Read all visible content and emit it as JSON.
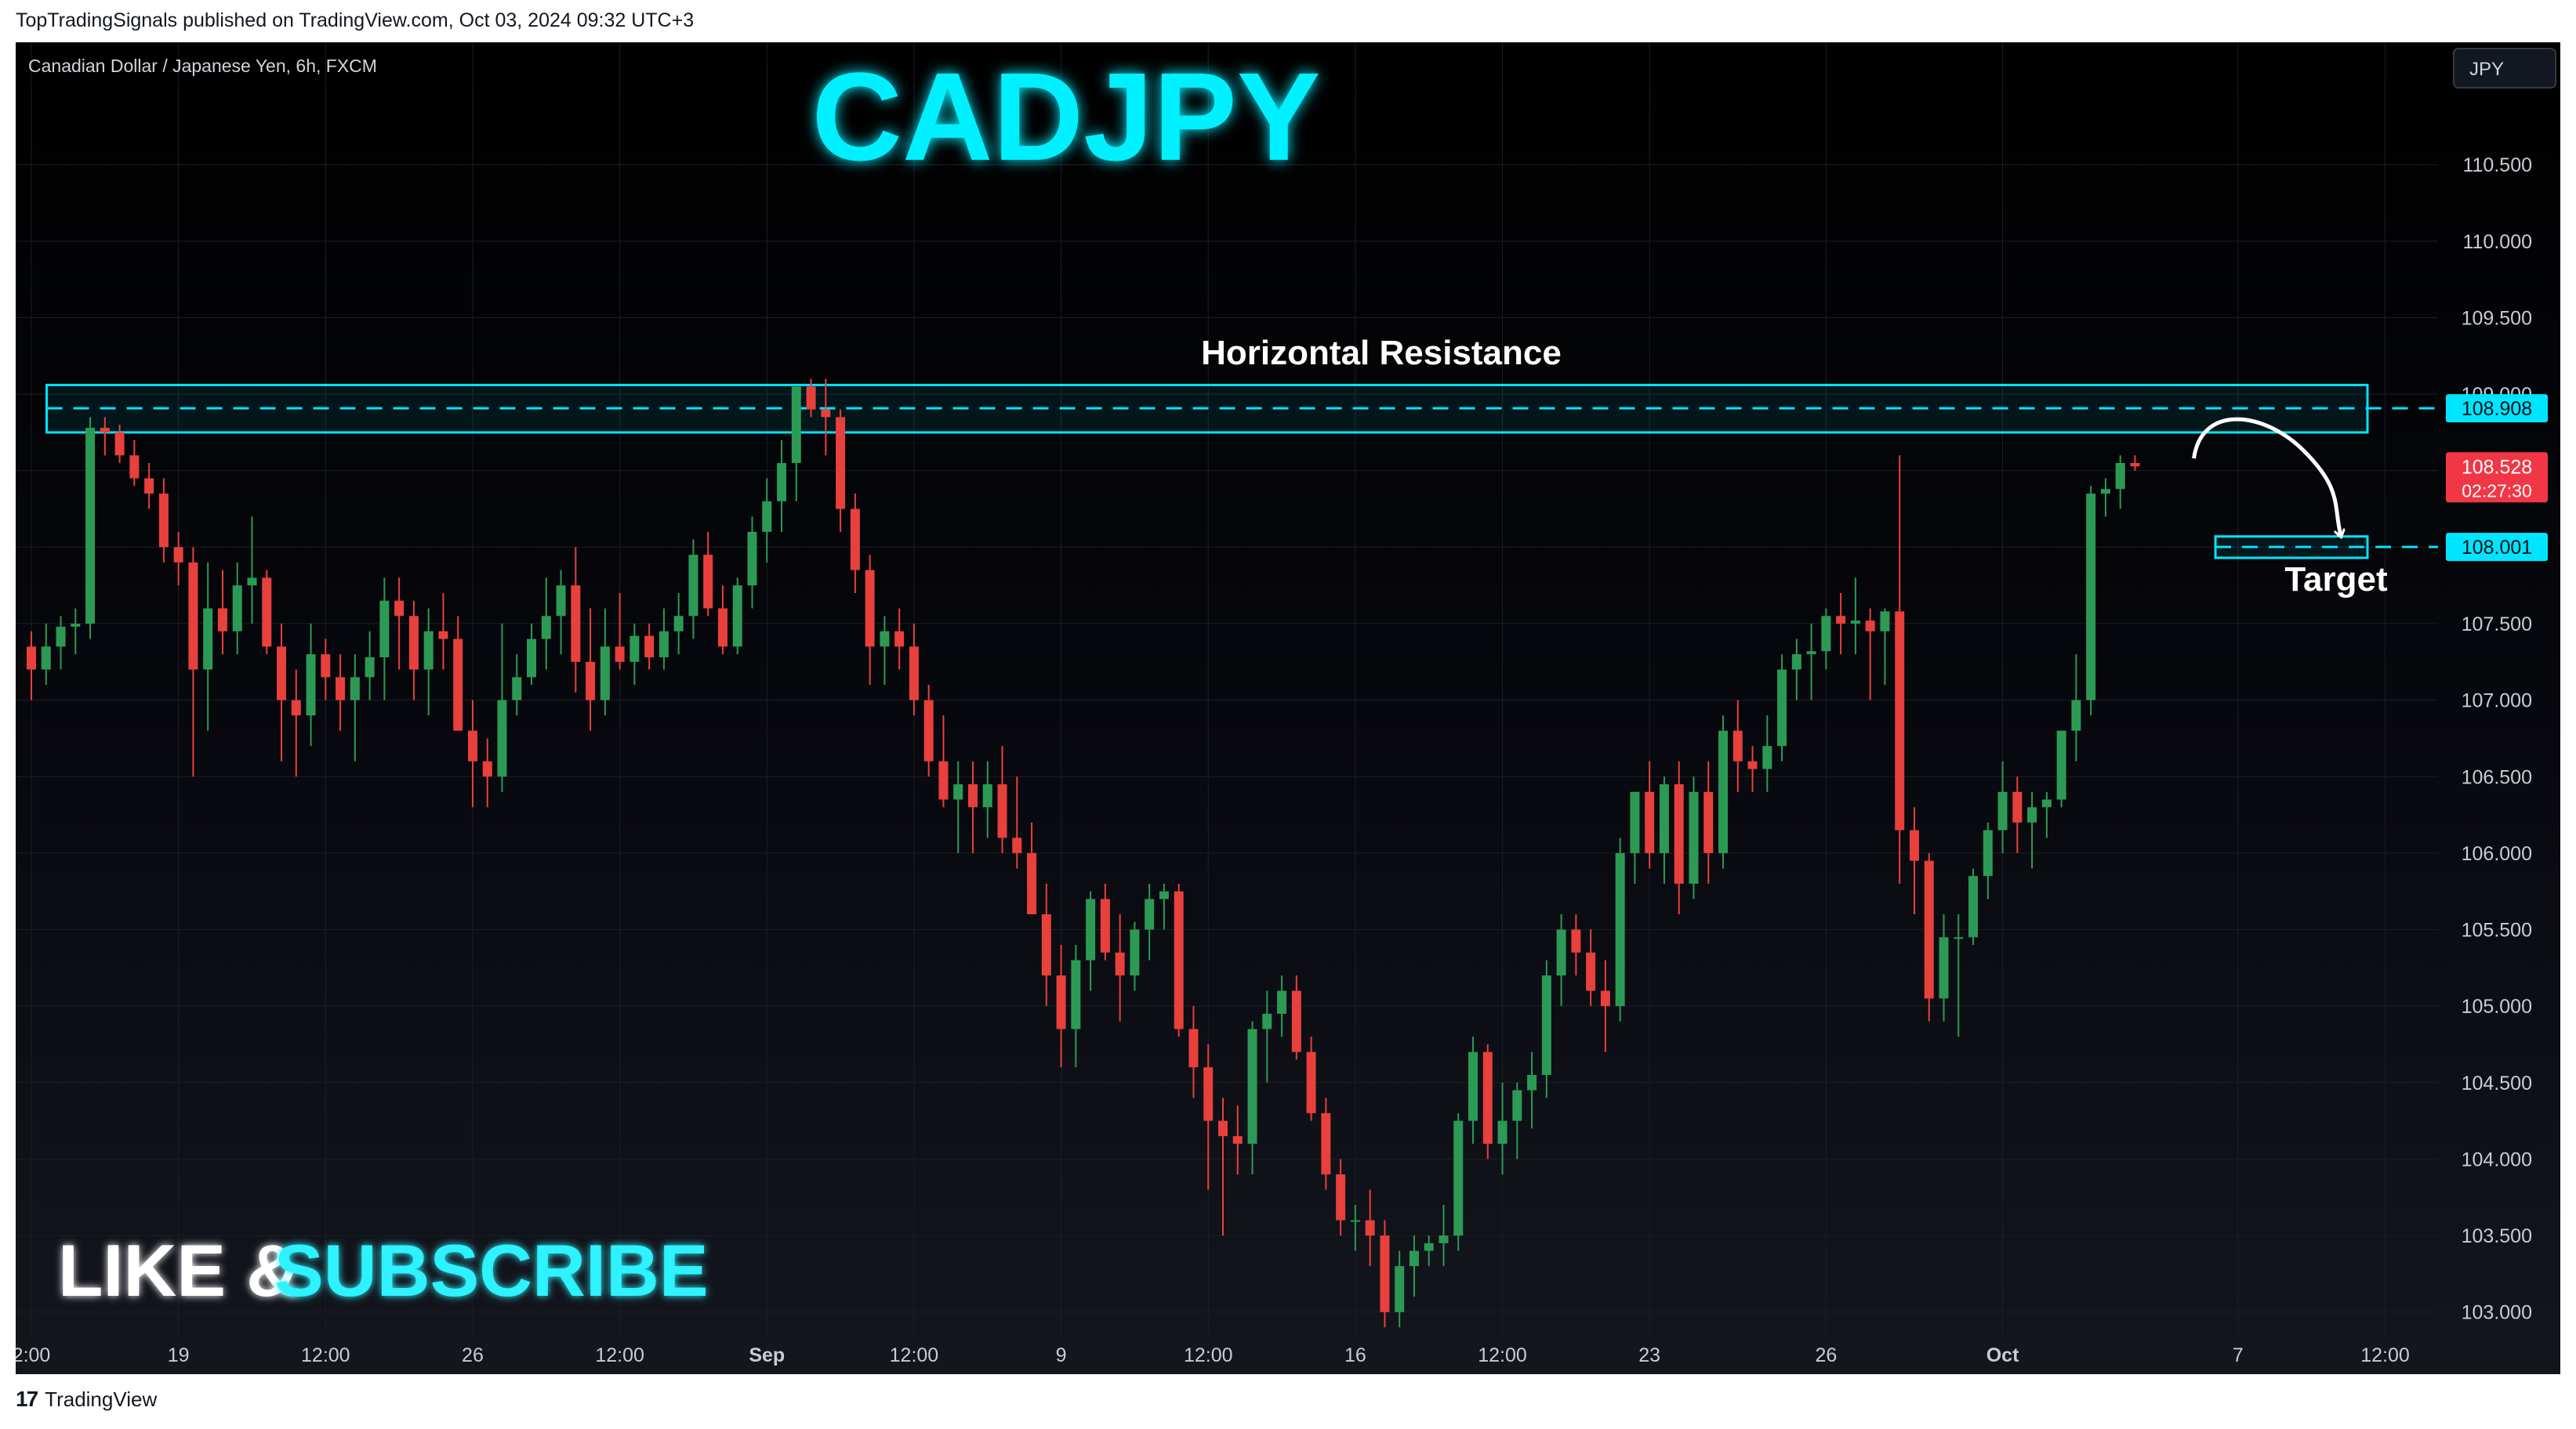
{
  "published_line": "TopTradingSignals published on TradingView.com, Oct 03, 2024 09:32 UTC+3",
  "footer": {
    "logo_text": "TradingView"
  },
  "chart_data": {
    "type": "candlestick",
    "symbol_line": "Canadian Dollar / Japanese Yen, 6h, FXCM",
    "title": "CADJPY",
    "currency": "JPY",
    "ylim": [
      102.85,
      111.3
    ],
    "y_ticks": [
      "103.000",
      "103.500",
      "104.000",
      "104.500",
      "105.000",
      "105.500",
      "106.000",
      "106.500",
      "107.000",
      "107.500",
      "108.000",
      "108.500",
      "109.000",
      "109.500",
      "110.000",
      "110.500"
    ],
    "x_ticks": [
      {
        "label": "2:00",
        "bar": 0
      },
      {
        "label": "19",
        "bar": 10
      },
      {
        "label": "12:00",
        "bar": 20
      },
      {
        "label": "26",
        "bar": 30
      },
      {
        "label": "12:00",
        "bar": 40
      },
      {
        "label": "Sep",
        "bar": 50
      },
      {
        "label": "12:00",
        "bar": 60
      },
      {
        "label": "9",
        "bar": 70
      },
      {
        "label": "12:00",
        "bar": 80
      },
      {
        "label": "16",
        "bar": 90
      },
      {
        "label": "12:00",
        "bar": 100
      },
      {
        "label": "23",
        "bar": 110
      },
      {
        "label": "26",
        "bar": 122
      },
      {
        "label": "Oct",
        "bar": 134
      },
      {
        "label": "7",
        "bar": 150
      },
      {
        "label": "12:00",
        "bar": 160
      }
    ],
    "bar_range": [
      0,
      162
    ],
    "candles": [
      [
        107.35,
        107.45,
        107.0,
        107.2
      ],
      [
        107.2,
        107.5,
        107.1,
        107.35
      ],
      [
        107.35,
        107.55,
        107.2,
        107.48
      ],
      [
        107.48,
        107.6,
        107.3,
        107.5
      ],
      [
        107.5,
        108.85,
        107.4,
        108.78
      ],
      [
        108.78,
        108.85,
        108.6,
        108.75
      ],
      [
        108.75,
        108.8,
        108.55,
        108.6
      ],
      [
        108.6,
        108.7,
        108.4,
        108.45
      ],
      [
        108.45,
        108.55,
        108.25,
        108.35
      ],
      [
        108.35,
        108.45,
        107.9,
        108.0
      ],
      [
        108.0,
        108.1,
        107.75,
        107.9
      ],
      [
        107.9,
        108.0,
        106.5,
        107.2
      ],
      [
        107.2,
        107.9,
        106.8,
        107.6
      ],
      [
        107.6,
        107.85,
        107.3,
        107.45
      ],
      [
        107.45,
        107.9,
        107.3,
        107.75
      ],
      [
        107.75,
        108.2,
        107.5,
        107.8
      ],
      [
        107.8,
        107.85,
        107.3,
        107.35
      ],
      [
        107.35,
        107.5,
        106.6,
        107.0
      ],
      [
        107.0,
        107.2,
        106.5,
        106.9
      ],
      [
        106.9,
        107.5,
        106.7,
        107.3
      ],
      [
        107.3,
        107.4,
        107.0,
        107.15
      ],
      [
        107.15,
        107.3,
        106.8,
        107.0
      ],
      [
        107.0,
        107.3,
        106.6,
        107.15
      ],
      [
        107.15,
        107.45,
        107.0,
        107.28
      ],
      [
        107.28,
        107.8,
        107.0,
        107.65
      ],
      [
        107.65,
        107.8,
        107.2,
        107.55
      ],
      [
        107.55,
        107.65,
        107.0,
        107.2
      ],
      [
        107.2,
        107.6,
        106.9,
        107.45
      ],
      [
        107.45,
        107.7,
        107.2,
        107.4
      ],
      [
        107.4,
        107.55,
        106.8,
        106.8
      ],
      [
        106.8,
        107.0,
        106.3,
        106.6
      ],
      [
        106.6,
        106.75,
        106.3,
        106.5
      ],
      [
        106.5,
        107.5,
        106.4,
        107.0
      ],
      [
        107.0,
        107.3,
        106.9,
        107.15
      ],
      [
        107.15,
        107.5,
        107.1,
        107.4
      ],
      [
        107.4,
        107.8,
        107.2,
        107.55
      ],
      [
        107.55,
        107.85,
        107.3,
        107.75
      ],
      [
        107.75,
        108.0,
        107.05,
        107.25
      ],
      [
        107.25,
        107.6,
        106.8,
        107.0
      ],
      [
        107.0,
        107.6,
        106.9,
        107.35
      ],
      [
        107.35,
        107.7,
        107.2,
        107.25
      ],
      [
        107.25,
        107.5,
        107.1,
        107.42
      ],
      [
        107.42,
        107.5,
        107.2,
        107.28
      ],
      [
        107.28,
        107.6,
        107.2,
        107.45
      ],
      [
        107.45,
        107.7,
        107.3,
        107.55
      ],
      [
        107.55,
        108.05,
        107.4,
        107.95
      ],
      [
        107.95,
        108.1,
        107.55,
        107.6
      ],
      [
        107.6,
        107.75,
        107.3,
        107.35
      ],
      [
        107.35,
        107.8,
        107.3,
        107.75
      ],
      [
        107.75,
        108.2,
        107.6,
        108.1
      ],
      [
        108.1,
        108.45,
        107.9,
        108.3
      ],
      [
        108.3,
        108.7,
        108.1,
        108.55
      ],
      [
        108.55,
        109.0,
        108.3,
        109.05
      ],
      [
        109.05,
        109.1,
        108.85,
        108.9
      ],
      [
        108.9,
        109.1,
        108.6,
        108.85
      ],
      [
        108.85,
        108.9,
        108.1,
        108.25
      ],
      [
        108.25,
        108.35,
        107.7,
        107.85
      ],
      [
        107.85,
        107.95,
        107.1,
        107.35
      ],
      [
        107.35,
        107.55,
        107.1,
        107.45
      ],
      [
        107.45,
        107.6,
        107.2,
        107.35
      ],
      [
        107.35,
        107.5,
        106.9,
        107.0
      ],
      [
        107.0,
        107.1,
        106.5,
        106.6
      ],
      [
        106.6,
        106.9,
        106.3,
        106.35
      ],
      [
        106.35,
        106.6,
        106.0,
        106.45
      ],
      [
        106.45,
        106.6,
        106.0,
        106.3
      ],
      [
        106.3,
        106.6,
        106.1,
        106.45
      ],
      [
        106.45,
        106.7,
        106.0,
        106.1
      ],
      [
        106.1,
        106.5,
        105.9,
        106.0
      ],
      [
        106.0,
        106.2,
        105.6,
        105.6
      ],
      [
        105.6,
        105.8,
        105.0,
        105.2
      ],
      [
        105.2,
        105.4,
        104.6,
        104.85
      ],
      [
        104.85,
        105.4,
        104.6,
        105.3
      ],
      [
        105.3,
        105.75,
        105.1,
        105.7
      ],
      [
        105.7,
        105.8,
        105.3,
        105.35
      ],
      [
        105.35,
        105.6,
        104.9,
        105.2
      ],
      [
        105.2,
        105.55,
        105.1,
        105.5
      ],
      [
        105.5,
        105.8,
        105.3,
        105.7
      ],
      [
        105.7,
        105.8,
        105.5,
        105.75
      ],
      [
        105.75,
        105.8,
        104.8,
        104.85
      ],
      [
        104.85,
        105.0,
        104.4,
        104.6
      ],
      [
        104.6,
        104.75,
        103.8,
        104.25
      ],
      [
        104.25,
        104.4,
        103.5,
        104.15
      ],
      [
        104.15,
        104.35,
        103.9,
        104.1
      ],
      [
        104.1,
        104.9,
        103.9,
        104.85
      ],
      [
        104.85,
        105.1,
        104.5,
        104.95
      ],
      [
        104.95,
        105.2,
        104.8,
        105.1
      ],
      [
        105.1,
        105.2,
        104.65,
        104.7
      ],
      [
        104.7,
        104.8,
        104.25,
        104.3
      ],
      [
        104.3,
        104.4,
        103.8,
        103.9
      ],
      [
        103.9,
        104.0,
        103.5,
        103.6
      ],
      [
        103.6,
        103.7,
        103.4,
        103.6
      ],
      [
        103.6,
        103.8,
        103.3,
        103.5
      ],
      [
        103.5,
        103.6,
        102.9,
        103.0
      ],
      [
        103.0,
        103.4,
        102.9,
        103.3
      ],
      [
        103.3,
        103.5,
        103.1,
        103.4
      ],
      [
        103.4,
        103.5,
        103.3,
        103.45
      ],
      [
        103.45,
        103.7,
        103.3,
        103.5
      ],
      [
        103.5,
        104.3,
        103.4,
        104.25
      ],
      [
        104.25,
        104.8,
        104.1,
        104.7
      ],
      [
        104.7,
        104.75,
        104.0,
        104.1
      ],
      [
        104.1,
        104.5,
        103.9,
        104.25
      ],
      [
        104.25,
        104.5,
        104.0,
        104.45
      ],
      [
        104.45,
        104.7,
        104.2,
        104.55
      ],
      [
        104.55,
        105.3,
        104.4,
        105.2
      ],
      [
        105.2,
        105.6,
        105.0,
        105.5
      ],
      [
        105.5,
        105.6,
        105.2,
        105.35
      ],
      [
        105.35,
        105.5,
        105.0,
        105.1
      ],
      [
        105.1,
        105.3,
        104.7,
        105.0
      ],
      [
        105.0,
        106.1,
        104.9,
        106.0
      ],
      [
        106.0,
        106.4,
        105.8,
        106.4
      ],
      [
        106.4,
        106.6,
        105.9,
        106.0
      ],
      [
        106.0,
        106.5,
        105.8,
        106.45
      ],
      [
        106.45,
        106.6,
        105.6,
        105.8
      ],
      [
        105.8,
        106.5,
        105.7,
        106.4
      ],
      [
        106.4,
        106.6,
        105.8,
        106.0
      ],
      [
        106.0,
        106.9,
        105.9,
        106.8
      ],
      [
        106.8,
        107.0,
        106.4,
        106.6
      ],
      [
        106.6,
        106.7,
        106.4,
        106.55
      ],
      [
        106.55,
        106.9,
        106.4,
        106.7
      ],
      [
        106.7,
        107.3,
        106.6,
        107.2
      ],
      [
        107.2,
        107.4,
        107.0,
        107.3
      ],
      [
        107.3,
        107.5,
        107.0,
        107.32
      ],
      [
        107.32,
        107.6,
        107.2,
        107.55
      ],
      [
        107.55,
        107.7,
        107.3,
        107.5
      ],
      [
        107.5,
        107.8,
        107.3,
        107.52
      ],
      [
        107.52,
        107.6,
        107.0,
        107.45
      ],
      [
        107.45,
        107.6,
        107.1,
        107.58
      ],
      [
        107.58,
        108.6,
        105.8,
        106.15
      ],
      [
        106.15,
        106.3,
        105.6,
        105.95
      ],
      [
        105.95,
        106.0,
        104.9,
        105.05
      ],
      [
        105.05,
        105.6,
        104.9,
        105.45
      ],
      [
        105.45,
        105.6,
        104.8,
        105.45
      ],
      [
        105.45,
        105.9,
        105.4,
        105.85
      ],
      [
        105.85,
        106.2,
        105.7,
        106.15
      ],
      [
        106.15,
        106.6,
        106.0,
        106.4
      ],
      [
        106.4,
        106.5,
        106.0,
        106.2
      ],
      [
        106.2,
        106.4,
        105.9,
        106.3
      ],
      [
        106.3,
        106.4,
        106.1,
        106.35
      ],
      [
        106.35,
        106.8,
        106.3,
        106.8
      ],
      [
        106.8,
        107.3,
        106.6,
        107.0
      ],
      [
        107.0,
        108.4,
        106.9,
        108.35
      ],
      [
        108.35,
        108.45,
        108.2,
        108.38
      ],
      [
        108.38,
        108.6,
        108.25,
        108.55
      ],
      [
        108.55,
        108.6,
        108.5,
        108.528
      ]
    ],
    "resistance": {
      "label": "Horizontal Resistance",
      "level": "108.908",
      "value": 108.908,
      "zone": [
        108.75,
        109.06
      ],
      "bar_from": 2,
      "bar_to": 162
    },
    "current_price": {
      "price": "108.528",
      "value": 108.528,
      "countdown": "02:27:30"
    },
    "target": {
      "label": "Target",
      "level": "108.001",
      "value": 108.001,
      "zone": [
        107.93,
        108.07
      ],
      "bar_from": 149,
      "bar_to": 162
    },
    "projection_arrow": {
      "from_bar": 147,
      "from_value": 108.58,
      "to_bar": 157,
      "to_value": 108.07
    },
    "colors": {
      "up": "#26a69a",
      "down": "#ef5350",
      "up_candle": "#2c9a55",
      "down_candle": "#e8403c",
      "accent": "#00e5ff",
      "grid": "#1c1e26",
      "axis_text": "#c9ccd4"
    }
  },
  "overlay": {
    "like_text": "LIKE &",
    "subscribe_text": "SUBSCRIBE"
  }
}
